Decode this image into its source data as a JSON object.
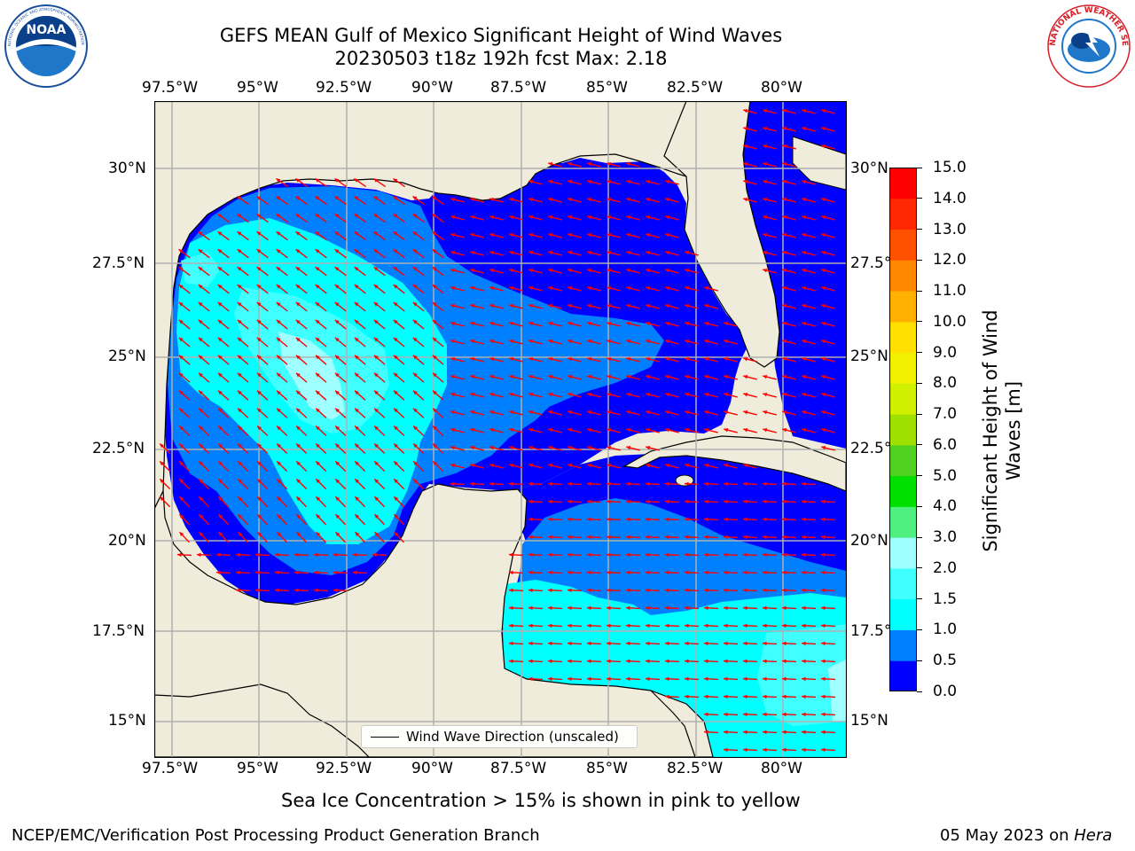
{
  "header": {
    "title_line1": "GEFS MEAN Gulf of Mexico Significant Height of Wind Waves",
    "title_line2": "20230503 t18z 192h fcst   Max: 2.18"
  },
  "logos": {
    "noara_text": "NOAA",
    "noaa_ring_text": "NATIONAL OCEANIC AND ATMOSPHERIC ADMINISTRATION · U.S. DEPARTMENT OF COMMERCE",
    "nws_ring_text": "NATIONAL WEATHER SERVICE"
  },
  "map": {
    "lon_ticks": [
      "97.5°W",
      "95°W",
      "92.5°W",
      "90°W",
      "87.5°W",
      "85°W",
      "82.5°W",
      "80°W"
    ],
    "lat_ticks": [
      "30°N",
      "27.5°N",
      "25°N",
      "22.5°N",
      "20°N",
      "17.5°N",
      "15°N"
    ],
    "legend_label": "Wind Wave Direction (unscaled)",
    "colors": {
      "land": "#efecdc",
      "wave_0_0.5": "#0000ff",
      "wave_0.5_1.0": "#0080ff",
      "wave_1.0_1.5": "#00ffff",
      "wave_1.5_2.0": "#40ffff",
      "wave_2.0_3.0": "#a0ffff",
      "arrows": "#ff0000",
      "grid": "#b0b0b0"
    }
  },
  "colorbar": {
    "label": "Significant Height of Wind Waves [m]",
    "label_line1": "Significant Height of Wind",
    "label_line2": "Waves [m]",
    "ticks": [
      "0.0",
      "0.5",
      "1.0",
      "1.5",
      "2.0",
      "3.0",
      "4.0",
      "5.0",
      "6.0",
      "7.0",
      "8.0",
      "9.0",
      "10.0",
      "11.0",
      "12.0",
      "13.0",
      "14.0",
      "15.0"
    ],
    "colors": [
      "#0000ff",
      "#0080ff",
      "#00ffff",
      "#40ffff",
      "#a0ffff",
      "#50f080",
      "#00e000",
      "#50d020",
      "#a0e000",
      "#d0f000",
      "#f0f000",
      "#ffe000",
      "#ffb000",
      "#ff8800",
      "#ff5000",
      "#ff2800",
      "#ff0000"
    ]
  },
  "footer": {
    "sea_ice_caption": "Sea Ice Concentration > 15% is shown in pink to yellow",
    "credit": "NCEP/EMC/Verification Post Processing Product Generation Branch",
    "date_prefix": "05 May 2023 on ",
    "machine": "Hera"
  }
}
